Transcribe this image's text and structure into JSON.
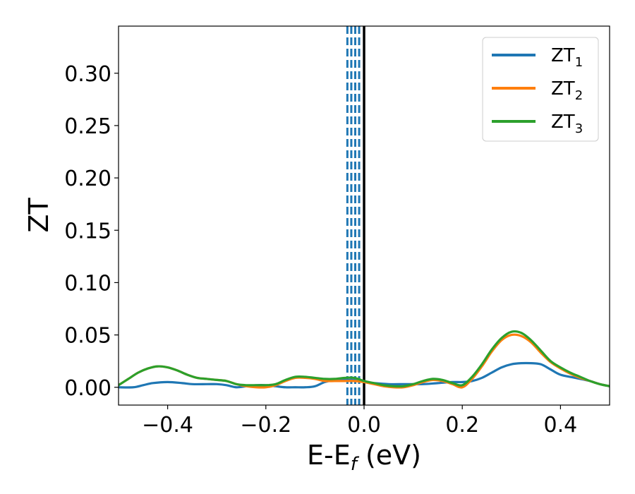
{
  "chart_data": {
    "type": "line",
    "xlabel": {
      "base": "E-E",
      "sub": "f",
      "suffix": " (eV)"
    },
    "ylabel": "ZT",
    "xlim": [
      -0.5,
      0.5
    ],
    "ylim": [
      -0.017,
      0.345
    ],
    "x_ticks": [
      -0.4,
      -0.2,
      0.0,
      0.2,
      0.4
    ],
    "x_tick_labels": [
      "−0.4",
      "−0.2",
      "0.0",
      "0.2",
      "0.4"
    ],
    "y_ticks": [
      0.0,
      0.05,
      0.1,
      0.15,
      0.2,
      0.25,
      0.3
    ],
    "y_tick_labels": [
      "0.00",
      "0.05",
      "0.10",
      "0.15",
      "0.20",
      "0.25",
      "0.30"
    ],
    "grid": false,
    "legend_position": "top-right",
    "vlines": [
      {
        "x": 0.0,
        "style": "solid",
        "color": "#000000"
      },
      {
        "x": -0.034,
        "style": "dashed",
        "color": "#1f77b4"
      },
      {
        "x": -0.026,
        "style": "dashed",
        "color": "#1f77b4"
      },
      {
        "x": -0.018,
        "style": "dashed",
        "color": "#1f77b4"
      },
      {
        "x": -0.01,
        "style": "dashed",
        "color": "#1f77b4"
      }
    ],
    "series": [
      {
        "name": "ZT",
        "sub": "1",
        "color": "#1f77b4",
        "x": [
          -0.5,
          -0.47,
          -0.45,
          -0.43,
          -0.4,
          -0.37,
          -0.35,
          -0.32,
          -0.3,
          -0.28,
          -0.26,
          -0.24,
          -0.22,
          -0.2,
          -0.18,
          -0.16,
          -0.14,
          -0.12,
          -0.1,
          -0.08,
          -0.06,
          -0.04,
          -0.02,
          0.0,
          0.02,
          0.05,
          0.08,
          0.1,
          0.12,
          0.15,
          0.18,
          0.2,
          0.22,
          0.24,
          0.26,
          0.28,
          0.3,
          0.32,
          0.34,
          0.36,
          0.38,
          0.4,
          0.43,
          0.46,
          0.48,
          0.5
        ],
        "values": [
          0.0,
          0.0,
          0.002,
          0.004,
          0.005,
          0.004,
          0.003,
          0.003,
          0.003,
          0.002,
          0.0,
          0.001,
          0.002,
          0.002,
          0.001,
          0.0,
          0.0,
          0.0,
          0.001,
          0.005,
          0.007,
          0.007,
          0.007,
          0.005,
          0.004,
          0.003,
          0.003,
          0.003,
          0.003,
          0.004,
          0.005,
          0.005,
          0.006,
          0.009,
          0.014,
          0.019,
          0.022,
          0.023,
          0.023,
          0.022,
          0.017,
          0.012,
          0.009,
          0.006,
          0.003,
          0.001
        ]
      },
      {
        "name": "ZT",
        "sub": "2",
        "color": "#ff7f0e",
        "x": [
          -0.5,
          -0.48,
          -0.46,
          -0.44,
          -0.42,
          -0.4,
          -0.38,
          -0.36,
          -0.34,
          -0.32,
          -0.3,
          -0.28,
          -0.26,
          -0.24,
          -0.22,
          -0.2,
          -0.18,
          -0.16,
          -0.14,
          -0.12,
          -0.1,
          -0.08,
          -0.06,
          -0.04,
          -0.02,
          0.0,
          0.02,
          0.04,
          0.06,
          0.08,
          0.1,
          0.12,
          0.14,
          0.16,
          0.18,
          0.2,
          0.22,
          0.24,
          0.26,
          0.28,
          0.3,
          0.32,
          0.34,
          0.36,
          0.38,
          0.4,
          0.42,
          0.44,
          0.46,
          0.48,
          0.5
        ],
        "values": [
          0.002,
          0.008,
          0.014,
          0.018,
          0.02,
          0.019,
          0.016,
          0.012,
          0.009,
          0.008,
          0.007,
          0.006,
          0.003,
          0.001,
          0.0,
          0.0,
          0.002,
          0.006,
          0.009,
          0.009,
          0.008,
          0.006,
          0.006,
          0.006,
          0.006,
          0.005,
          0.003,
          0.001,
          0.0,
          0.0,
          0.002,
          0.005,
          0.007,
          0.006,
          0.003,
          0.0,
          0.008,
          0.02,
          0.034,
          0.045,
          0.05,
          0.049,
          0.043,
          0.033,
          0.024,
          0.018,
          0.013,
          0.009,
          0.006,
          0.003,
          0.001
        ]
      },
      {
        "name": "ZT",
        "sub": "3",
        "color": "#2ca02c",
        "x": [
          -0.5,
          -0.48,
          -0.46,
          -0.44,
          -0.42,
          -0.4,
          -0.38,
          -0.36,
          -0.34,
          -0.32,
          -0.3,
          -0.28,
          -0.26,
          -0.24,
          -0.22,
          -0.2,
          -0.18,
          -0.16,
          -0.14,
          -0.12,
          -0.1,
          -0.08,
          -0.06,
          -0.04,
          -0.02,
          0.0,
          0.02,
          0.04,
          0.06,
          0.08,
          0.1,
          0.12,
          0.14,
          0.16,
          0.18,
          0.2,
          0.22,
          0.24,
          0.26,
          0.28,
          0.3,
          0.32,
          0.34,
          0.36,
          0.38,
          0.4,
          0.42,
          0.44,
          0.46,
          0.48,
          0.5
        ],
        "values": [
          0.002,
          0.008,
          0.014,
          0.018,
          0.02,
          0.019,
          0.016,
          0.012,
          0.009,
          0.008,
          0.007,
          0.006,
          0.003,
          0.002,
          0.002,
          0.002,
          0.003,
          0.007,
          0.01,
          0.01,
          0.009,
          0.008,
          0.008,
          0.009,
          0.009,
          0.006,
          0.004,
          0.002,
          0.001,
          0.001,
          0.003,
          0.006,
          0.008,
          0.007,
          0.004,
          0.002,
          0.01,
          0.022,
          0.036,
          0.047,
          0.053,
          0.052,
          0.045,
          0.035,
          0.025,
          0.019,
          0.014,
          0.01,
          0.006,
          0.003,
          0.001
        ]
      }
    ]
  }
}
